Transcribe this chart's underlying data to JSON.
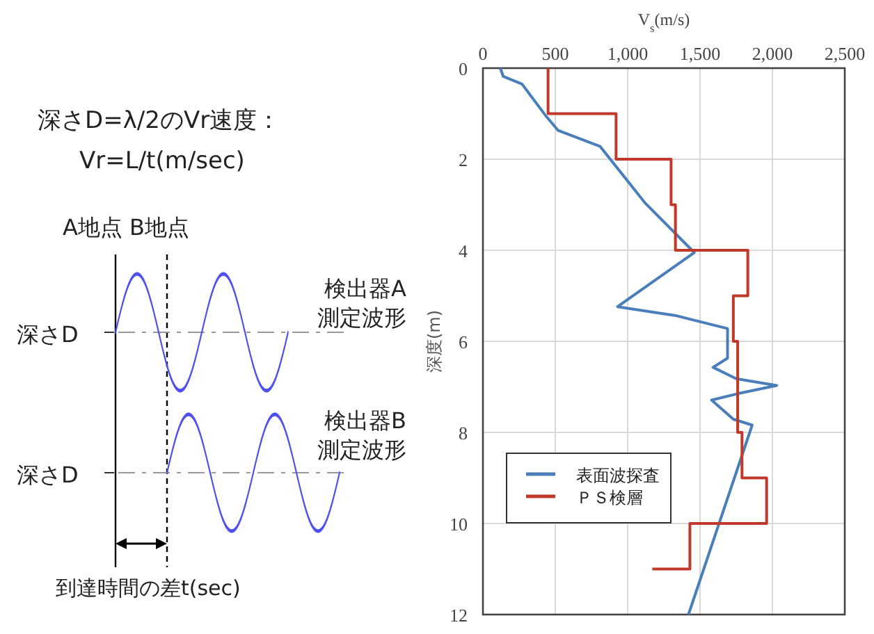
{
  "chart_data": [
    {
      "type": "other",
      "annotations": [
        "深さD=λ/2のVr速度：",
        "Vr=L/t(m/sec)",
        "A地点 B地点",
        "検出器A",
        "測定波形",
        "深さD",
        "検出器B",
        "測定波形",
        "深さD",
        "到達時間の差t(sec)"
      ]
    },
    {
      "type": "line",
      "orientation": "horizontal",
      "xlabel": "V$_{s}$(m/s)",
      "ylabel": "深度(m)",
      "xlim": [
        0,
        2500
      ],
      "xticks": [
        0,
        500,
        {
          "value": 1000,
          "label": "1,000"
        },
        {
          "value": 1500,
          "label": "1,500"
        },
        {
          "value": 2000,
          "label": "2,000"
        },
        {
          "value": 2500,
          "label": "2,500"
        }
      ],
      "ylim": [
        12,
        0
      ],
      "yticks": [
        0,
        2,
        4,
        6,
        8,
        10,
        12
      ],
      "grid": true,
      "legend": "bottom left",
      "series": [
        {
          "name": "表面波探査",
          "color": "#4a7ebb",
          "x": [
            0,
            0.18,
            0.35,
            1.07,
            1.37,
            1.72,
            2.96,
            4.05,
            5.24,
            5.44,
            5.72,
            6.37,
            6.57,
            6.82,
            6.97,
            7.15,
            7.29,
            7.71,
            7.84,
            12
          ],
          "values": [
            120,
            140,
            270,
            440,
            520,
            810,
            1120,
            1460,
            930,
            1340,
            1690,
            1690,
            1590,
            1750,
            2030,
            1760,
            1580,
            1730,
            1860,
            1420
          ]
        },
        {
          "name": "ＰＳ検層",
          "type": "step",
          "color": "#c0392b",
          "x": [
            0,
            1,
            2,
            3,
            4,
            5,
            6,
            8,
            9,
            10,
            11
          ],
          "values": [
            450,
            920,
            1300,
            1330,
            1830,
            1730,
            1760,
            1790,
            1960,
            1430,
            1170
          ]
        }
      ]
    }
  ]
}
